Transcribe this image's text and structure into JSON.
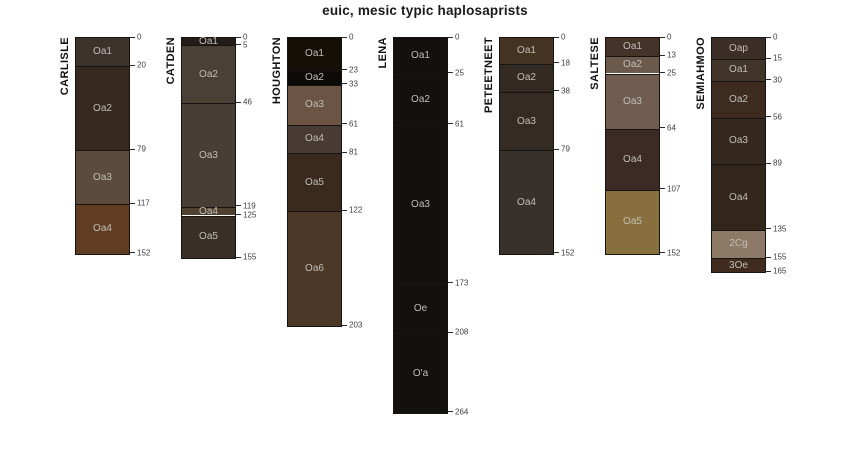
{
  "title": "euic, mesic typic haplosaprists",
  "colors": {
    "background": "#ffffff",
    "horizon_label_text": "#c2beb7",
    "tick_label_text": "#3d3d3d",
    "boundary_line": "#161310",
    "title_text": "#1b1b1b"
  },
  "chart_data": {
    "type": "bar",
    "variant": "soil-profile-depth-columns",
    "title": "euic, mesic typic haplosaprists",
    "depth_unit": "cm",
    "depth_axis": "right-of-each-column",
    "legend": "none",
    "grid": false,
    "profiles": [
      {
        "name": "CARLISLE",
        "depth_ticks": [
          0,
          20,
          79,
          117,
          152
        ],
        "horizons": [
          {
            "label": "Oa1",
            "top_cm": 0,
            "bottom_cm": 20,
            "color": "#3b322b"
          },
          {
            "label": "Oa2",
            "top_cm": 20,
            "bottom_cm": 79,
            "color": "#36291f"
          },
          {
            "label": "Oa3",
            "top_cm": 79,
            "bottom_cm": 117,
            "color": "#5c4b3d"
          },
          {
            "label": "Oa4",
            "top_cm": 117,
            "bottom_cm": 152,
            "color": "#603c23"
          }
        ]
      },
      {
        "name": "CATDEN",
        "depth_ticks": [
          0,
          5,
          46,
          119,
          125,
          155
        ],
        "horizons": [
          {
            "label": "Oa1",
            "top_cm": 0,
            "bottom_cm": 5,
            "color": "#241d17"
          },
          {
            "label": "Oa2",
            "top_cm": 5,
            "bottom_cm": 46,
            "color": "#4b4036"
          },
          {
            "label": "Oa3",
            "top_cm": 46,
            "bottom_cm": 119,
            "color": "#493e35"
          },
          {
            "label": "Oa4",
            "top_cm": 119,
            "bottom_cm": 125,
            "color": "#50402f"
          },
          {
            "label": "Oa5",
            "top_cm": 125,
            "bottom_cm": 155,
            "color": "#3a2f26"
          }
        ]
      },
      {
        "name": "HOUGHTON",
        "depth_ticks": [
          0,
          23,
          33,
          61,
          81,
          122,
          203
        ],
        "horizons": [
          {
            "label": "Oa1",
            "top_cm": 0,
            "bottom_cm": 23,
            "color": "#141008"
          },
          {
            "label": "Oa2",
            "top_cm": 23,
            "bottom_cm": 33,
            "color": "#0d0b08"
          },
          {
            "label": "Oa3",
            "top_cm": 33,
            "bottom_cm": 61,
            "color": "#6b5444"
          },
          {
            "label": "Oa4",
            "top_cm": 61,
            "bottom_cm": 81,
            "color": "#473b33"
          },
          {
            "label": "Oa5",
            "top_cm": 81,
            "bottom_cm": 122,
            "color": "#392a1d"
          },
          {
            "label": "Oa6",
            "top_cm": 122,
            "bottom_cm": 203,
            "color": "#4c3827"
          }
        ]
      },
      {
        "name": "LENA",
        "depth_ticks": [
          0,
          25,
          61,
          173,
          208,
          264
        ],
        "horizons": [
          {
            "label": "Oa1",
            "top_cm": 0,
            "bottom_cm": 25,
            "color": "#121110"
          },
          {
            "label": "Oa2",
            "top_cm": 25,
            "bottom_cm": 61,
            "color": "#121110"
          },
          {
            "label": "Oa3",
            "top_cm": 61,
            "bottom_cm": 173,
            "color": "#121110"
          },
          {
            "label": "Oe",
            "top_cm": 173,
            "bottom_cm": 208,
            "color": "#121110"
          },
          {
            "label": "O'a",
            "top_cm": 208,
            "bottom_cm": 264,
            "color": "#121110"
          }
        ]
      },
      {
        "name": "PETEETNEET",
        "depth_ticks": [
          0,
          18,
          38,
          79,
          152
        ],
        "horizons": [
          {
            "label": "Oa1",
            "top_cm": 0,
            "bottom_cm": 18,
            "color": "#453322"
          },
          {
            "label": "Oa2",
            "top_cm": 18,
            "bottom_cm": 38,
            "color": "#332b23"
          },
          {
            "label": "Oa3",
            "top_cm": 38,
            "bottom_cm": 79,
            "color": "#342c24"
          },
          {
            "label": "Oa4",
            "top_cm": 79,
            "bottom_cm": 152,
            "color": "#38302a"
          }
        ]
      },
      {
        "name": "SALTESE",
        "depth_ticks": [
          0,
          13,
          25,
          64,
          107,
          152
        ],
        "horizons": [
          {
            "label": "Oa1",
            "top_cm": 0,
            "bottom_cm": 13,
            "color": "#453229"
          },
          {
            "label": "Oa2",
            "top_cm": 13,
            "bottom_cm": 25,
            "color": "#6b594c"
          },
          {
            "label": "Oa3",
            "top_cm": 25,
            "bottom_cm": 64,
            "color": "#705d50"
          },
          {
            "label": "Oa4",
            "top_cm": 64,
            "bottom_cm": 107,
            "color": "#3c2b24"
          },
          {
            "label": "Oa5",
            "top_cm": 107,
            "bottom_cm": 152,
            "color": "#876f3e"
          }
        ]
      },
      {
        "name": "SEMIAHMOO",
        "depth_ticks": [
          0,
          15,
          30,
          56,
          89,
          135,
          155,
          165
        ],
        "horizons": [
          {
            "label": "Oap",
            "top_cm": 0,
            "bottom_cm": 15,
            "color": "#3b2f27"
          },
          {
            "label": "Oa1",
            "top_cm": 15,
            "bottom_cm": 30,
            "color": "#413429"
          },
          {
            "label": "Oa2",
            "top_cm": 30,
            "bottom_cm": 56,
            "color": "#3d2b20"
          },
          {
            "label": "Oa3",
            "top_cm": 56,
            "bottom_cm": 89,
            "color": "#35291f"
          },
          {
            "label": "Oa4",
            "top_cm": 89,
            "bottom_cm": 135,
            "color": "#32261a"
          },
          {
            "label": "2Cg",
            "top_cm": 135,
            "bottom_cm": 155,
            "color": "#8d7a66"
          },
          {
            "label": "3Oe",
            "top_cm": 155,
            "bottom_cm": 165,
            "color": "#3f2c1f"
          }
        ]
      }
    ]
  }
}
